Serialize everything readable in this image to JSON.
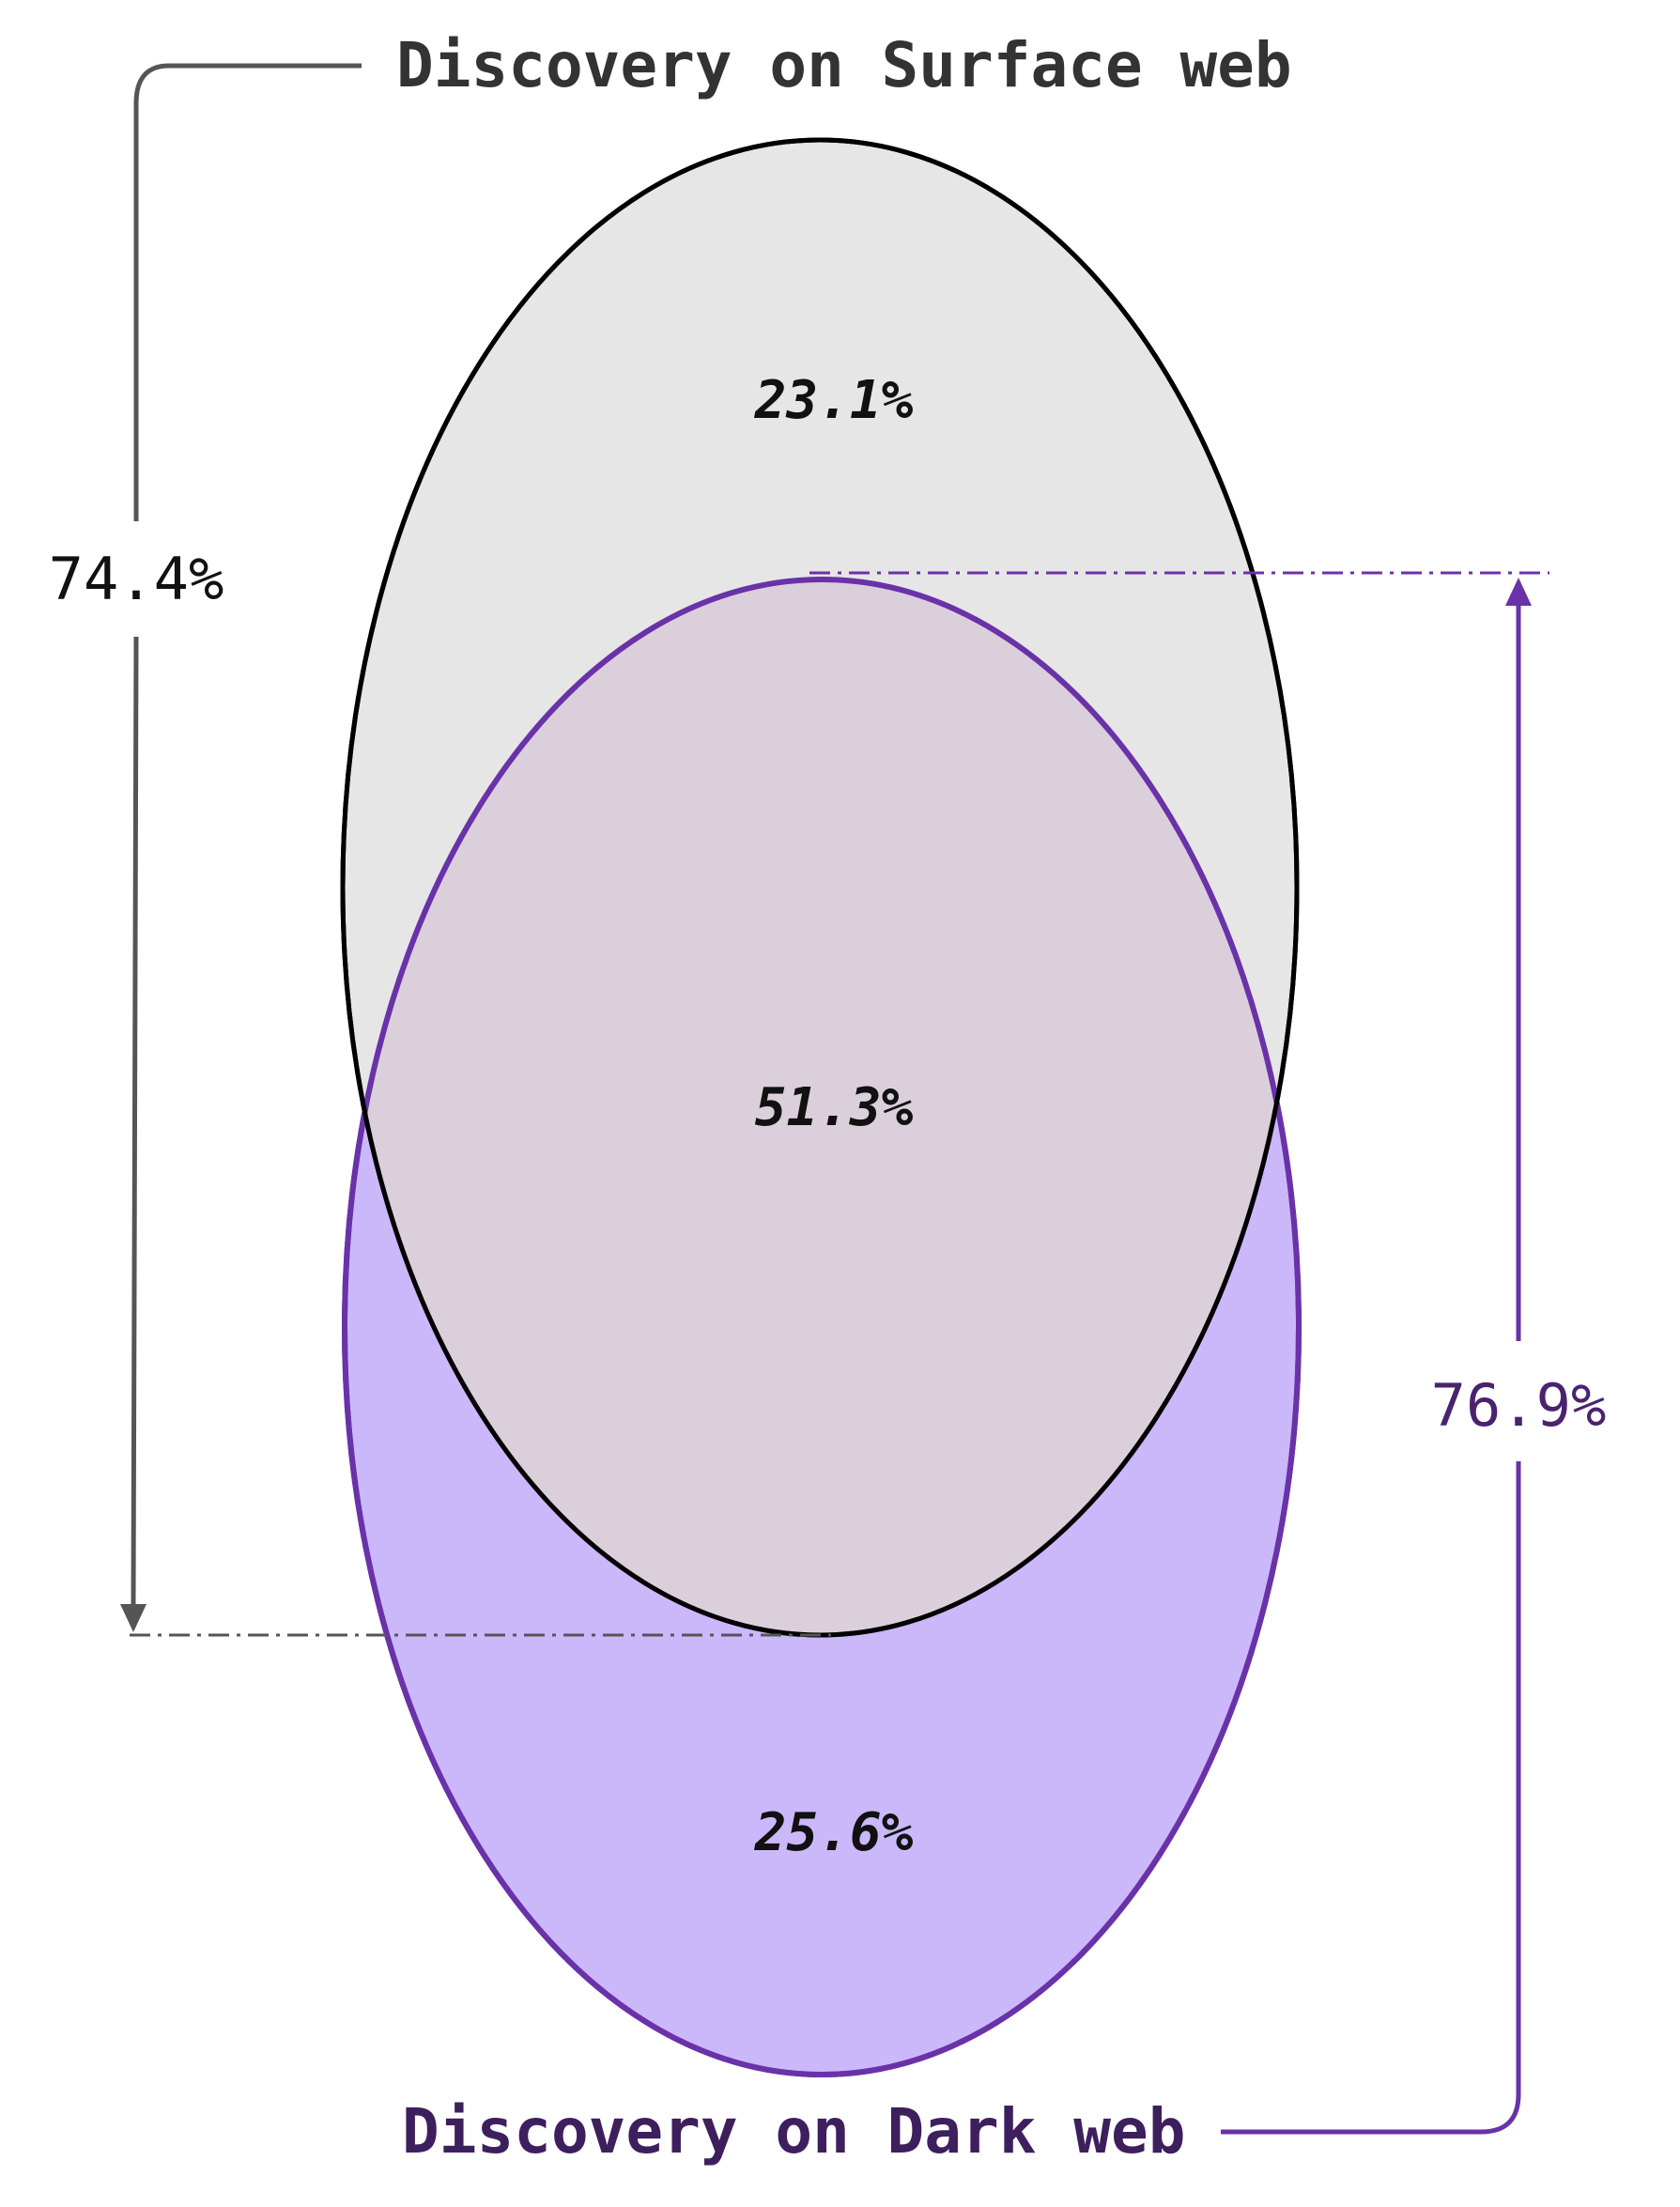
{
  "venn": {
    "sets": [
      {
        "id": "surface",
        "label": "Discovery on Surface web",
        "total": "74.4%",
        "color": "#555555",
        "fill": "#e6e6e6",
        "stroke": "#000000"
      },
      {
        "id": "dark",
        "label": "Discovery on Dark web",
        "total": "76.9%",
        "color": "#5a2a8a",
        "fill": "#cbb8fb",
        "stroke": "#6a32a8"
      }
    ],
    "regions": {
      "surface_only": "23.1%",
      "overlap": "51.3%",
      "dark_only": "25.6%"
    },
    "colors": {
      "overlap_fill": "#dccfdc",
      "surface_bracket": "#555555",
      "dark_bracket": "#6a32a8",
      "surface_title": "#333333",
      "dark_title": "#3d1f5e",
      "surface_total": "#111111",
      "dark_total": "#4a2370"
    }
  }
}
